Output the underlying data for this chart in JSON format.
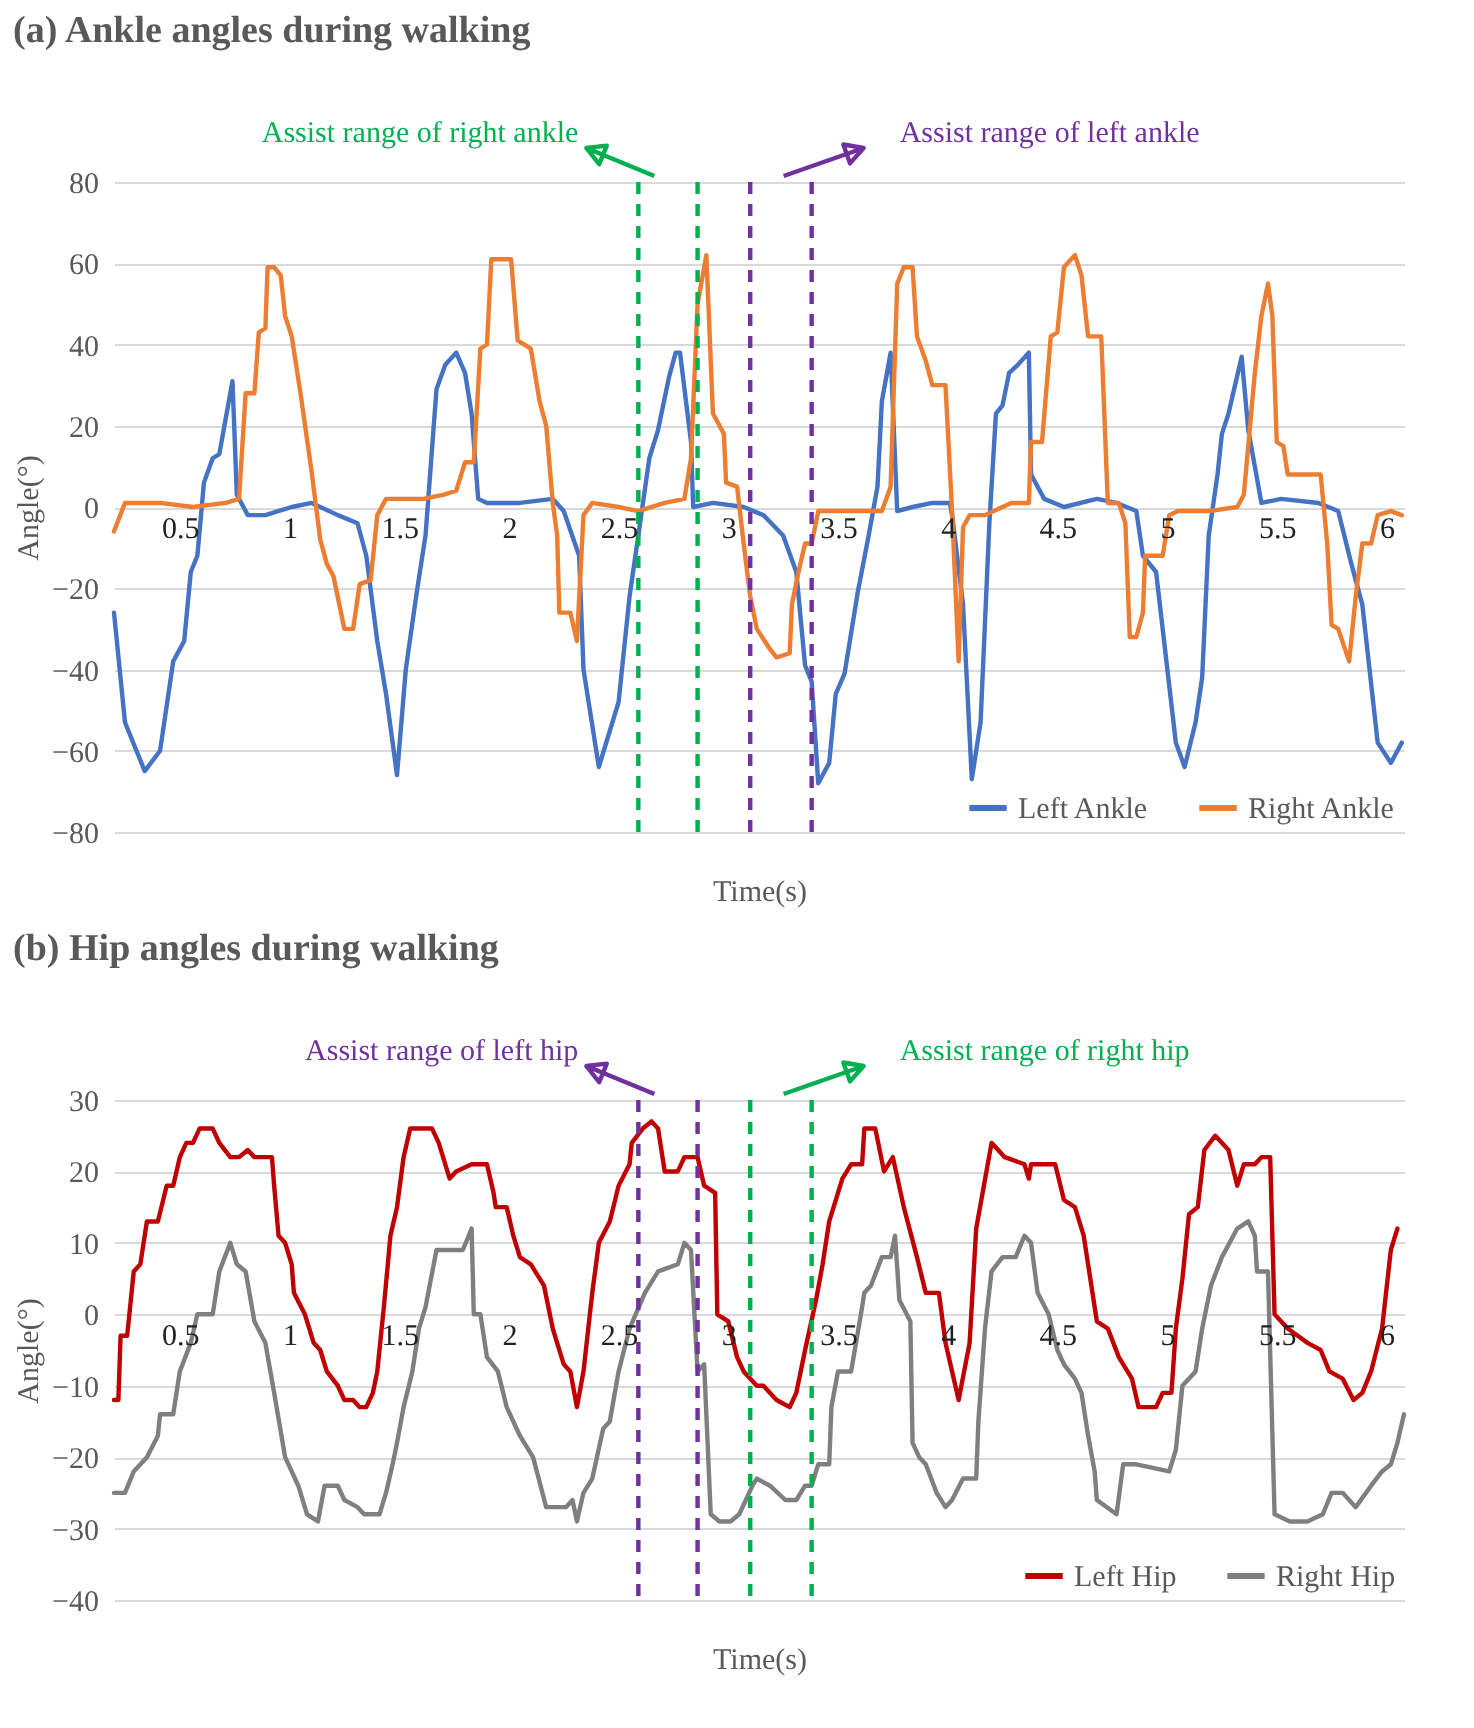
{
  "chart_data": [
    {
      "type": "line",
      "title": "(a) Ankle angles during walking",
      "xlabel": "Time(s)",
      "ylabel": "Angle(°)",
      "xlim": [
        0.2,
        6.08
      ],
      "ylim": [
        -80,
        80
      ],
      "xticks": [
        0.5,
        1,
        1.5,
        2,
        2.5,
        3,
        3.5,
        4,
        4.5,
        5,
        5.5,
        6
      ],
      "yticks": [
        -80,
        -60,
        -40,
        -20,
        0,
        20,
        40,
        60,
        80
      ],
      "grid": "y",
      "legend": "bottom right",
      "line_style": "solid",
      "series": [
        {
          "name": "Left Ankle",
          "color": "#4472c4",
          "x": [
            0.2,
            0.25,
            0.34,
            0.41,
            0.47,
            0.52,
            0.55,
            0.58,
            0.61,
            0.65,
            0.68,
            0.74,
            0.76,
            0.81,
            0.89,
            1.01,
            1.1,
            1.22,
            1.31,
            1.35,
            1.4,
            1.44,
            1.49,
            1.53,
            1.58,
            1.62,
            1.67,
            1.71,
            1.76,
            1.8,
            1.83,
            1.86,
            1.9,
            2.05,
            2.2,
            2.25,
            2.32,
            2.34,
            2.41,
            2.5,
            2.55,
            2.59,
            2.64,
            2.68,
            2.73,
            2.76,
            2.78,
            2.83,
            2.84,
            2.93,
            3.07,
            3.16,
            3.25,
            3.31,
            3.35,
            3.38,
            3.41,
            3.46,
            3.49,
            3.53,
            3.59,
            3.64,
            3.68,
            3.7,
            3.74,
            3.77,
            3.84,
            3.93,
            4.01,
            4.02,
            4.07,
            4.11,
            4.15,
            4.19,
            4.22,
            4.25,
            4.28,
            4.32,
            4.37,
            4.38,
            4.44,
            4.53,
            4.68,
            4.77,
            4.86,
            4.89,
            4.95,
            5.04,
            5.08,
            5.13,
            5.16,
            5.19,
            5.23,
            5.25,
            5.28,
            5.34,
            5.37,
            5.43,
            5.52,
            5.69,
            5.78,
            5.84,
            5.89,
            5.96,
            6.02,
            6.07
          ],
          "values": [
            -26,
            -53,
            -65,
            -60,
            -38,
            -33,
            -16,
            -12,
            6,
            12,
            13,
            31,
            3,
            -2,
            -2,
            0,
            1,
            -2,
            -4,
            -12,
            -33,
            -46,
            -66,
            -40,
            -21,
            -7,
            29,
            35,
            38,
            33,
            23,
            2,
            1,
            1,
            2,
            -1,
            -12,
            -40,
            -64,
            -48,
            -22,
            -7,
            12,
            19,
            32,
            38,
            38,
            16,
            0,
            1,
            0,
            -2,
            -7,
            -16,
            -39,
            -43,
            -68,
            -63,
            -46,
            -41,
            -21,
            -7,
            5,
            26,
            38,
            -1,
            0,
            1,
            1,
            -2,
            -24,
            -67,
            -53,
            -4,
            23,
            25,
            33,
            35,
            38,
            8,
            2,
            0,
            2,
            1,
            -1,
            -12,
            -16,
            -58,
            -64,
            -53,
            -42,
            -7,
            8,
            18,
            23,
            37,
            19,
            1,
            2,
            1,
            -1,
            -14,
            -24,
            -58,
            -63,
            -58
          ]
        },
        {
          "name": "Right Ankle",
          "color": "#ed7d31",
          "x": [
            0.2,
            0.25,
            0.32,
            0.41,
            0.56,
            0.71,
            0.77,
            0.8,
            0.84,
            0.86,
            0.89,
            0.9,
            0.93,
            0.96,
            0.98,
            1.01,
            1.05,
            1.1,
            1.14,
            1.17,
            1.2,
            1.25,
            1.29,
            1.32,
            1.37,
            1.4,
            1.44,
            1.61,
            1.7,
            1.76,
            1.8,
            1.84,
            1.87,
            1.9,
            1.92,
            2.01,
            2.04,
            2.1,
            2.14,
            2.17,
            2.2,
            2.22,
            2.23,
            2.28,
            2.31,
            2.34,
            2.38,
            2.5,
            2.59,
            2.71,
            2.8,
            2.83,
            2.86,
            2.9,
            2.93,
            2.98,
            2.99,
            3.04,
            3.07,
            3.1,
            3.13,
            3.19,
            3.22,
            3.28,
            3.29,
            3.32,
            3.35,
            3.38,
            3.41,
            3.7,
            3.74,
            3.77,
            3.8,
            3.84,
            3.86,
            3.9,
            3.93,
            3.99,
            4.02,
            4.05,
            4.07,
            4.1,
            4.17,
            4.25,
            4.29,
            4.37,
            4.38,
            4.43,
            4.47,
            4.5,
            4.53,
            4.58,
            4.61,
            4.64,
            4.7,
            4.73,
            4.78,
            4.81,
            4.83,
            4.86,
            4.89,
            4.9,
            4.98,
            5.01,
            5.05,
            5.19,
            5.32,
            5.35,
            5.4,
            5.43,
            5.46,
            5.48,
            5.5,
            5.53,
            5.55,
            5.7,
            5.73,
            5.75,
            5.78,
            5.83,
            5.86,
            5.89,
            5.93,
            5.96,
            6.02,
            6.07
          ],
          "values": [
            -6,
            1,
            1,
            1,
            0,
            1,
            2,
            28,
            28,
            43,
            44,
            59,
            59,
            57,
            47,
            42,
            28,
            9,
            -8,
            -14,
            -17,
            -30,
            -30,
            -19,
            -18,
            -2,
            2,
            2,
            3,
            4,
            11,
            11,
            39,
            40,
            61,
            61,
            41,
            39,
            26,
            20,
            1,
            -7,
            -26,
            -26,
            -33,
            -2,
            1,
            0,
            -1,
            1,
            2,
            12,
            50,
            62,
            23,
            18,
            6,
            5,
            -9,
            -22,
            -30,
            -35,
            -37,
            -36,
            -24,
            -16,
            -9,
            -9,
            -1,
            -1,
            5,
            55,
            59,
            59,
            42,
            36,
            30,
            30,
            -1,
            -38,
            -5,
            -2,
            -2,
            0,
            1,
            1,
            16,
            16,
            42,
            43,
            59,
            62,
            57,
            42,
            42,
            1,
            1,
            -4,
            -32,
            -32,
            -26,
            -12,
            -12,
            -2,
            -1,
            -1,
            0,
            3,
            33,
            47,
            55,
            47,
            16,
            15,
            8,
            8,
            -9,
            -29,
            -30,
            -38,
            -22,
            -9,
            -9,
            -2,
            -1,
            -2
          ]
        }
      ],
      "ref_lines": [
        {
          "axis": "x",
          "value": 2.59,
          "label": "Assist range of right ankle",
          "color": "#00b050",
          "line_style": "dashed"
        },
        {
          "axis": "x",
          "value": 2.86,
          "color": "#00b050",
          "line_style": "dashed"
        },
        {
          "axis": "x",
          "value": 3.1,
          "color": "#7030a0",
          "line_style": "dashed"
        },
        {
          "axis": "x",
          "value": 3.38,
          "label": "Assist range of left ankle",
          "color": "#7030a0",
          "line_style": "dashed"
        }
      ]
    },
    {
      "type": "line",
      "title": "(b) Hip angles during walking",
      "xlabel": "Time(s)",
      "ylabel": "Angle(°)",
      "xlim": [
        0.2,
        6.08
      ],
      "ylim": [
        -40,
        30
      ],
      "xticks": [
        0.5,
        1,
        1.5,
        2,
        2.5,
        3,
        3.5,
        4,
        4.5,
        5,
        5.5,
        6
      ],
      "yticks": [
        -40,
        -30,
        -20,
        -10,
        0,
        10,
        20,
        30
      ],
      "grid": "y",
      "legend": "bottom right",
      "line_style": "solid",
      "series": [
        {
          "name": "Left Hip",
          "color": "#c00000",
          "x": [
            0.2,
            0.22,
            0.23,
            0.26,
            0.29,
            0.32,
            0.35,
            0.4,
            0.44,
            0.47,
            0.5,
            0.53,
            0.56,
            0.59,
            0.65,
            0.68,
            0.73,
            0.77,
            0.81,
            0.84,
            0.92,
            0.93,
            0.95,
            0.98,
            1.01,
            1.02,
            1.07,
            1.08,
            1.11,
            1.14,
            1.17,
            1.22,
            1.25,
            1.29,
            1.32,
            1.35,
            1.38,
            1.4,
            1.43,
            1.46,
            1.49,
            1.52,
            1.55,
            1.58,
            1.61,
            1.65,
            1.68,
            1.73,
            1.76,
            1.83,
            1.9,
            1.93,
            1.94,
            1.99,
            2.02,
            2.05,
            2.1,
            2.16,
            2.2,
            2.25,
            2.28,
            2.31,
            2.34,
            2.38,
            2.41,
            2.46,
            2.5,
            2.55,
            2.56,
            2.61,
            2.65,
            2.68,
            2.71,
            2.77,
            2.8,
            2.86,
            2.89,
            2.94,
            2.95,
            3.0,
            3.04,
            3.07,
            3.13,
            3.16,
            3.22,
            3.28,
            3.31,
            3.35,
            3.4,
            3.43,
            3.46,
            3.47,
            3.52,
            3.56,
            3.61,
            3.62,
            3.67,
            3.71,
            3.75,
            3.8,
            3.86,
            3.9,
            3.96,
            3.99,
            4.05,
            4.1,
            4.13,
            4.2,
            4.26,
            4.35,
            4.37,
            4.38,
            4.49,
            4.53,
            4.58,
            4.62,
            4.68,
            4.73,
            4.78,
            4.84,
            4.87,
            4.95,
            4.98,
            5.02,
            5.04,
            5.07,
            5.1,
            5.14,
            5.17,
            5.22,
            5.28,
            5.32,
            5.35,
            5.4,
            5.43,
            5.47,
            5.49,
            5.55,
            5.64,
            5.7,
            5.74,
            5.8,
            5.85,
            5.89,
            5.93,
            5.98,
            6.02,
            6.05
          ],
          "values": [
            -12,
            -12,
            -3,
            -3,
            6,
            7,
            13,
            13,
            18,
            18,
            22,
            24,
            24,
            26,
            26,
            24,
            22,
            22,
            23,
            22,
            22,
            18,
            11,
            10,
            7,
            3,
            0,
            -1,
            -4,
            -5,
            -8,
            -10,
            -12,
            -12,
            -13,
            -13,
            -11,
            -8,
            1,
            11,
            15,
            22,
            26,
            26,
            26,
            26,
            24,
            19,
            20,
            21,
            21,
            17,
            15,
            15,
            11,
            8,
            7,
            4,
            -2,
            -7,
            -8,
            -13,
            -8,
            3,
            10,
            13,
            18,
            21,
            24,
            26,
            27,
            26,
            20,
            20,
            22,
            22,
            18,
            17,
            0,
            -1,
            -6,
            -8,
            -10,
            -10,
            -12,
            -13,
            -11,
            -5,
            2,
            7,
            13,
            14,
            19,
            21,
            21,
            26,
            26,
            20,
            22,
            15,
            8,
            3,
            3,
            -4,
            -12,
            -4,
            12,
            24,
            22,
            21,
            19,
            21,
            21,
            16,
            15,
            11,
            -1,
            -2,
            -6,
            -9,
            -13,
            -13,
            -11,
            -11,
            -2,
            5,
            14,
            15,
            23,
            25,
            23,
            18,
            21,
            21,
            22,
            22,
            0,
            -2,
            -4,
            -5,
            -8,
            -9,
            -12,
            -11,
            -8,
            -2,
            9,
            12
          ]
        },
        {
          "name": "Right Hip",
          "color": "#7f7f7f",
          "x": [
            0.2,
            0.25,
            0.29,
            0.35,
            0.4,
            0.41,
            0.47,
            0.5,
            0.55,
            0.58,
            0.65,
            0.68,
            0.73,
            0.76,
            0.8,
            0.84,
            0.89,
            0.93,
            0.98,
            1.04,
            1.08,
            1.13,
            1.16,
            1.22,
            1.25,
            1.31,
            1.34,
            1.41,
            1.44,
            1.47,
            1.49,
            1.52,
            1.56,
            1.59,
            1.62,
            1.67,
            1.79,
            1.83,
            1.84,
            1.87,
            1.9,
            1.95,
            1.99,
            2.05,
            2.11,
            2.17,
            2.26,
            2.29,
            2.31,
            2.34,
            2.38,
            2.43,
            2.46,
            2.5,
            2.55,
            2.62,
            2.68,
            2.77,
            2.8,
            2.83,
            2.86,
            2.89,
            2.92,
            2.96,
            3.01,
            3.05,
            3.11,
            3.13,
            3.19,
            3.26,
            3.31,
            3.35,
            3.38,
            3.41,
            3.46,
            3.47,
            3.5,
            3.52,
            3.56,
            3.61,
            3.62,
            3.65,
            3.7,
            3.74,
            3.76,
            3.78,
            3.83,
            3.84,
            3.87,
            3.9,
            3.95,
            3.99,
            4.02,
            4.07,
            4.13,
            4.14,
            4.17,
            4.2,
            4.25,
            4.31,
            4.35,
            4.38,
            4.41,
            4.46,
            4.5,
            4.53,
            4.58,
            4.61,
            4.64,
            4.67,
            4.68,
            4.77,
            4.8,
            4.86,
            5.01,
            5.04,
            5.07,
            5.13,
            5.16,
            5.2,
            5.25,
            5.32,
            5.37,
            5.4,
            5.41,
            5.46,
            5.49,
            5.56,
            5.64,
            5.71,
            5.75,
            5.8,
            5.86,
            5.93,
            5.98,
            6.02,
            6.05,
            6.08
          ],
          "values": [
            -25,
            -25,
            -22,
            -20,
            -17,
            -14,
            -14,
            -8,
            -4,
            0,
            0,
            6,
            10,
            7,
            6,
            -1,
            -4,
            -11,
            -20,
            -24,
            -28,
            -29,
            -24,
            -24,
            -26,
            -27,
            -28,
            -28,
            -25,
            -21,
            -18,
            -13,
            -8,
            -2,
            1,
            9,
            9,
            12,
            0,
            0,
            -6,
            -8,
            -13,
            -17,
            -20,
            -27,
            -27,
            -26,
            -29,
            -25,
            -23,
            -16,
            -15,
            -8,
            -2,
            3,
            6,
            7,
            10,
            9,
            -8,
            -7,
            -28,
            -29,
            -29,
            -28,
            -24,
            -23,
            -24,
            -26,
            -26,
            -24,
            -24,
            -21,
            -21,
            -13,
            -8,
            -8,
            -8,
            1,
            3,
            4,
            8,
            8,
            11,
            2,
            -1,
            -18,
            -20,
            -21,
            -25,
            -27,
            -26,
            -23,
            -23,
            -15,
            -2,
            6,
            8,
            8,
            11,
            10,
            3,
            0,
            -5,
            -7,
            -9,
            -11,
            -17,
            -22,
            -26,
            -28,
            -21,
            -21,
            -22,
            -19,
            -10,
            -8,
            -2,
            4,
            8,
            12,
            13,
            11,
            6,
            6,
            -28,
            -29,
            -29,
            -28,
            -25,
            -25,
            -27,
            -24,
            -22,
            -21,
            -18,
            -14
          ]
        }
      ],
      "ref_lines": [
        {
          "axis": "x",
          "value": 2.59,
          "label": "Assist range of left hip",
          "color": "#7030a0",
          "line_style": "dashed"
        },
        {
          "axis": "x",
          "value": 2.86,
          "color": "#7030a0",
          "line_style": "dashed"
        },
        {
          "axis": "x",
          "value": 3.1,
          "color": "#00b050",
          "line_style": "dashed"
        },
        {
          "axis": "x",
          "value": 3.38,
          "label": "Assist range of right hip",
          "color": "#00b050",
          "line_style": "dashed"
        }
      ]
    }
  ]
}
